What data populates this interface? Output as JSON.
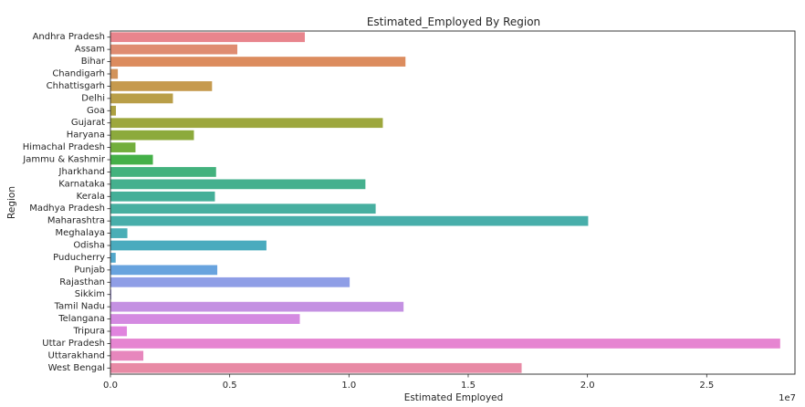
{
  "chart_data": {
    "type": "bar",
    "orientation": "horizontal",
    "title": "Estimated_Employed By Region",
    "xlabel": "Estimated Employed",
    "ylabel": "Region",
    "x_offset_label": "1e7",
    "xlim": [
      0,
      28700000
    ],
    "x_ticks": [
      0,
      5000000,
      10000000,
      15000000,
      20000000,
      25000000
    ],
    "x_tick_labels": [
      "0.0",
      "0.5",
      "1.0",
      "1.5",
      "2.0",
      "2.5"
    ],
    "grid": false,
    "categories": [
      "Andhra Pradesh",
      "Assam",
      "Bihar",
      "Chandigarh",
      "Chhattisgarh",
      "Delhi",
      "Goa",
      "Gujarat",
      "Haryana",
      "Himachal Pradesh",
      "Jammu & Kashmir",
      "Jharkhand",
      "Karnataka",
      "Kerala",
      "Madhya Pradesh",
      "Maharashtra",
      "Meghalaya",
      "Odisha",
      "Puducherry",
      "Punjab",
      "Rajasthan",
      "Sikkim",
      "Tamil Nadu",
      "Telangana",
      "Tripura",
      "Uttar Pradesh",
      "Uttarakhand",
      "West Bengal"
    ],
    "values": [
      8150000,
      5320000,
      12370000,
      310000,
      4260000,
      2620000,
      230000,
      11420000,
      3500000,
      1050000,
      1780000,
      4430000,
      10690000,
      4380000,
      11120000,
      20030000,
      710000,
      6540000,
      220000,
      4480000,
      10030000,
      40000,
      12290000,
      7940000,
      690000,
      28080000,
      1380000,
      17240000
    ],
    "colors": [
      "#e8858d",
      "#df8c71",
      "#dc8c5e",
      "#d2935a",
      "#c69a4e",
      "#b99e48",
      "#aca040",
      "#9da73d",
      "#8caa3c",
      "#72ae3c",
      "#44b048",
      "#43b27d",
      "#45b08e",
      "#44af98",
      "#47afa0",
      "#48aeaa",
      "#4aaeb6",
      "#4aabbe",
      "#52a8cc",
      "#68a3de",
      "#8f9ee6",
      "#a89be7",
      "#c491e2",
      "#d48ae1",
      "#e084de",
      "#e685d1",
      "#e787bd",
      "#e88aa5"
    ]
  }
}
